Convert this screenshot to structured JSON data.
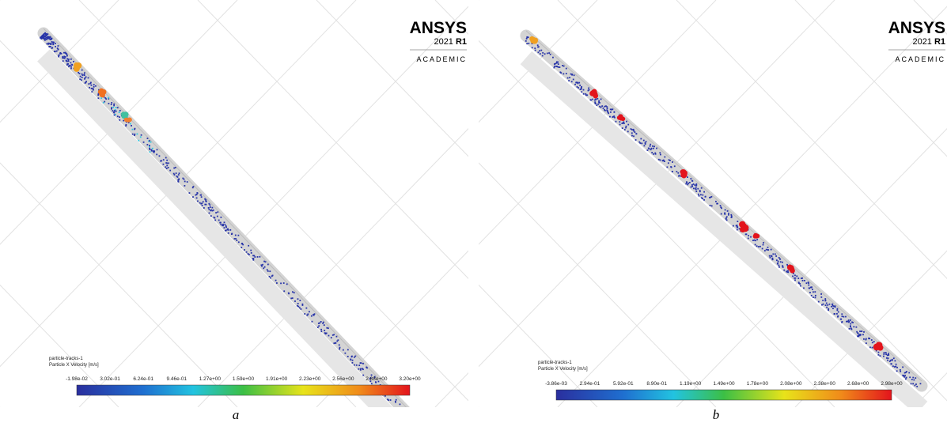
{
  "panels": [
    {
      "logo": {
        "brand": "ANSYS",
        "version": "2021",
        "release": "R1",
        "edition": "ACADEMIC"
      },
      "legend": {
        "object": "particle-tracks-1",
        "quantity": "Particle X Velocity [m/s]",
        "ticks": [
          "-1.98e-02",
          "3.02e-01",
          "6.24e-01",
          "9.46e-01",
          "1.27e+00",
          "1.59e+00",
          "1.91e+00",
          "2.23e+00",
          "2.56e+00",
          "2.88e+00",
          "3.20e+00"
        ]
      },
      "caption": "a"
    },
    {
      "logo": {
        "brand": "ANSYS",
        "version": "2021",
        "release": "R1",
        "edition": "ACADEMIC"
      },
      "legend": {
        "object": "particle-tracks-1",
        "quantity": "Particle X Velocity [m/s]",
        "ticks": [
          "-3.86e-03",
          "2.94e-01",
          "5.92e-01",
          "8.90e-01",
          "1.19e+00",
          "1.49e+00",
          "1.78e+00",
          "2.08e+00",
          "2.38e+00",
          "2.68e+00",
          "2.98e+00"
        ]
      },
      "caption": "b"
    }
  ]
}
